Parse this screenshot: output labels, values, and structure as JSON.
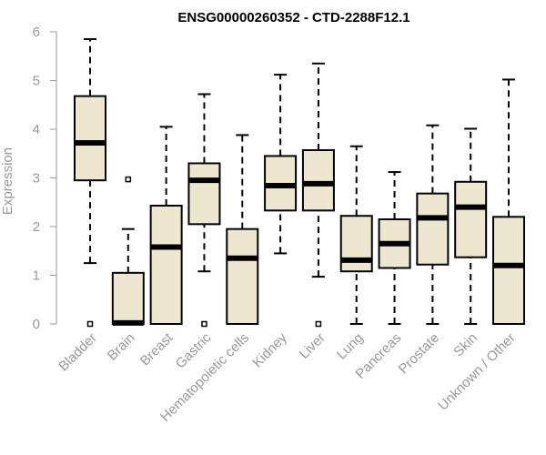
{
  "chart_data": {
    "type": "box",
    "title": "ENSG00000260352 - CTD-2288F12.1",
    "ylabel": "Expression",
    "xlabel": "",
    "ylim": [
      0,
      6
    ],
    "yticks": [
      "0",
      "1",
      "2",
      "3",
      "4",
      "5",
      "6"
    ],
    "grid": false,
    "colors": {
      "box_fill": "#ede7cf",
      "box_stroke": "#000000",
      "axis": "#999999",
      "tick_label": "#999999",
      "title": "#000000"
    },
    "categories": [
      "Bladder",
      "Brain",
      "Breast",
      "Gastric",
      "Hematopoietic cells",
      "Kidney",
      "Liver",
      "Lung",
      "Pancreas",
      "Prostate",
      "Skin",
      "Unknown / Other"
    ],
    "boxes": [
      {
        "whisker_low": 1.25,
        "q1": 2.95,
        "median": 3.72,
        "q3": 4.68,
        "whisker_high": 5.85,
        "outliers": [
          0
        ]
      },
      {
        "whisker_low": 0,
        "q1": 0,
        "median": 0.02,
        "q3": 1.05,
        "whisker_high": 1.95,
        "outliers": [
          2.97
        ]
      },
      {
        "whisker_low": 0,
        "q1": 0,
        "median": 1.58,
        "q3": 2.43,
        "whisker_high": 4.05,
        "outliers": []
      },
      {
        "whisker_low": 1.08,
        "q1": 2.05,
        "median": 2.95,
        "q3": 3.3,
        "whisker_high": 4.72,
        "outliers": [
          0
        ]
      },
      {
        "whisker_low": 0,
        "q1": 0,
        "median": 1.35,
        "q3": 1.95,
        "whisker_high": 3.88,
        "outliers": []
      },
      {
        "whisker_low": 1.45,
        "q1": 2.33,
        "median": 2.84,
        "q3": 3.45,
        "whisker_high": 5.12,
        "outliers": []
      },
      {
        "whisker_low": 0.97,
        "q1": 2.33,
        "median": 2.88,
        "q3": 3.57,
        "whisker_high": 5.35,
        "outliers": [
          0
        ]
      },
      {
        "whisker_low": 0,
        "q1": 1.08,
        "median": 1.31,
        "q3": 2.22,
        "whisker_high": 3.65,
        "outliers": []
      },
      {
        "whisker_low": 0,
        "q1": 1.15,
        "median": 1.65,
        "q3": 2.15,
        "whisker_high": 3.12,
        "outliers": []
      },
      {
        "whisker_low": 0,
        "q1": 1.22,
        "median": 2.18,
        "q3": 2.68,
        "whisker_high": 4.08,
        "outliers": []
      },
      {
        "whisker_low": 0,
        "q1": 1.37,
        "median": 2.4,
        "q3": 2.92,
        "whisker_high": 4.01,
        "outliers": []
      },
      {
        "whisker_low": 0,
        "q1": 0,
        "median": 1.2,
        "q3": 2.2,
        "whisker_high": 5.02,
        "outliers": []
      }
    ]
  }
}
